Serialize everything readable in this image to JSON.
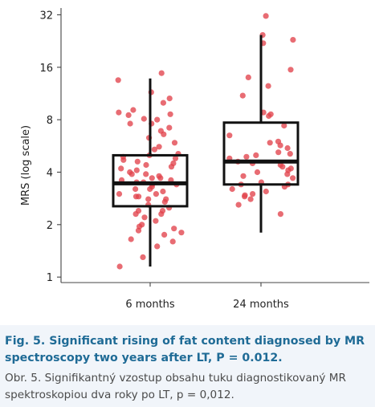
{
  "chart_data": {
    "type": "box",
    "ylabel": "MRS (log scale)",
    "xlabel": "",
    "yscale": "log2",
    "ylim": [
      0.93,
      35
    ],
    "yticks": [
      1,
      2,
      4,
      8,
      16,
      32
    ],
    "ytick_labels": [
      "1",
      "2",
      "4",
      "8",
      "16",
      "32"
    ],
    "categories": [
      "6 months",
      "24 months"
    ],
    "box_color": "#111111",
    "point_color": "#e2434b",
    "groups": [
      {
        "name": "6 months",
        "stats": {
          "whisker_low": 1.15,
          "q1": 2.55,
          "median": 3.45,
          "q3": 5.0,
          "whisker_high": 13.8
        },
        "points": [
          14.8,
          13.5,
          11.5,
          10.6,
          10.0,
          9.1,
          8.8,
          8.6,
          8.5,
          8.1,
          8.0,
          7.6,
          7.6,
          7.2,
          6.9,
          6.6,
          6.3,
          5.9,
          5.6,
          5.4,
          5.1,
          5.0,
          4.9,
          4.8,
          4.7,
          4.6,
          4.5,
          4.4,
          4.3,
          4.2,
          4.1,
          4.0,
          3.9,
          3.9,
          3.8,
          3.7,
          3.7,
          3.6,
          3.6,
          3.5,
          3.5,
          3.4,
          3.4,
          3.3,
          3.2,
          3.2,
          3.1,
          3.0,
          3.0,
          2.9,
          2.9,
          2.8,
          2.8,
          2.7,
          2.6,
          2.5,
          2.4,
          2.4,
          2.3,
          2.3,
          2.2,
          2.1,
          2.0,
          1.95,
          1.9,
          1.85,
          1.8,
          1.75,
          1.65,
          1.6,
          1.5,
          1.3,
          1.15
        ]
      },
      {
        "name": "24 months",
        "stats": {
          "whisker_low": 1.8,
          "q1": 3.4,
          "median": 4.6,
          "q3": 7.7,
          "whisker_high": 24.5
        },
        "points": [
          31.5,
          24.5,
          23.0,
          22.0,
          15.5,
          14.0,
          12.5,
          11.0,
          8.8,
          8.6,
          8.4,
          7.4,
          6.5,
          6.0,
          5.9,
          5.7,
          5.5,
          5.2,
          5.1,
          5.0,
          4.9,
          4.8,
          4.6,
          4.5,
          4.4,
          4.3,
          4.2,
          4.1,
          4.0,
          3.9,
          3.8,
          3.7,
          3.5,
          3.4,
          3.4,
          3.3,
          3.2,
          3.1,
          3.0,
          2.95,
          2.9,
          2.8,
          2.6,
          2.3
        ]
      }
    ]
  },
  "caption": {
    "english": "Fig. 5. Significant rising of fat content diagnosed by MR spectroscopy two years after LT, P = 0.012.",
    "czech": "Obr. 5. Signifikantný vzostup obsahu tuku diagnostikovaný MR spektroskopiou dva roky po LT, p = 0,012."
  }
}
